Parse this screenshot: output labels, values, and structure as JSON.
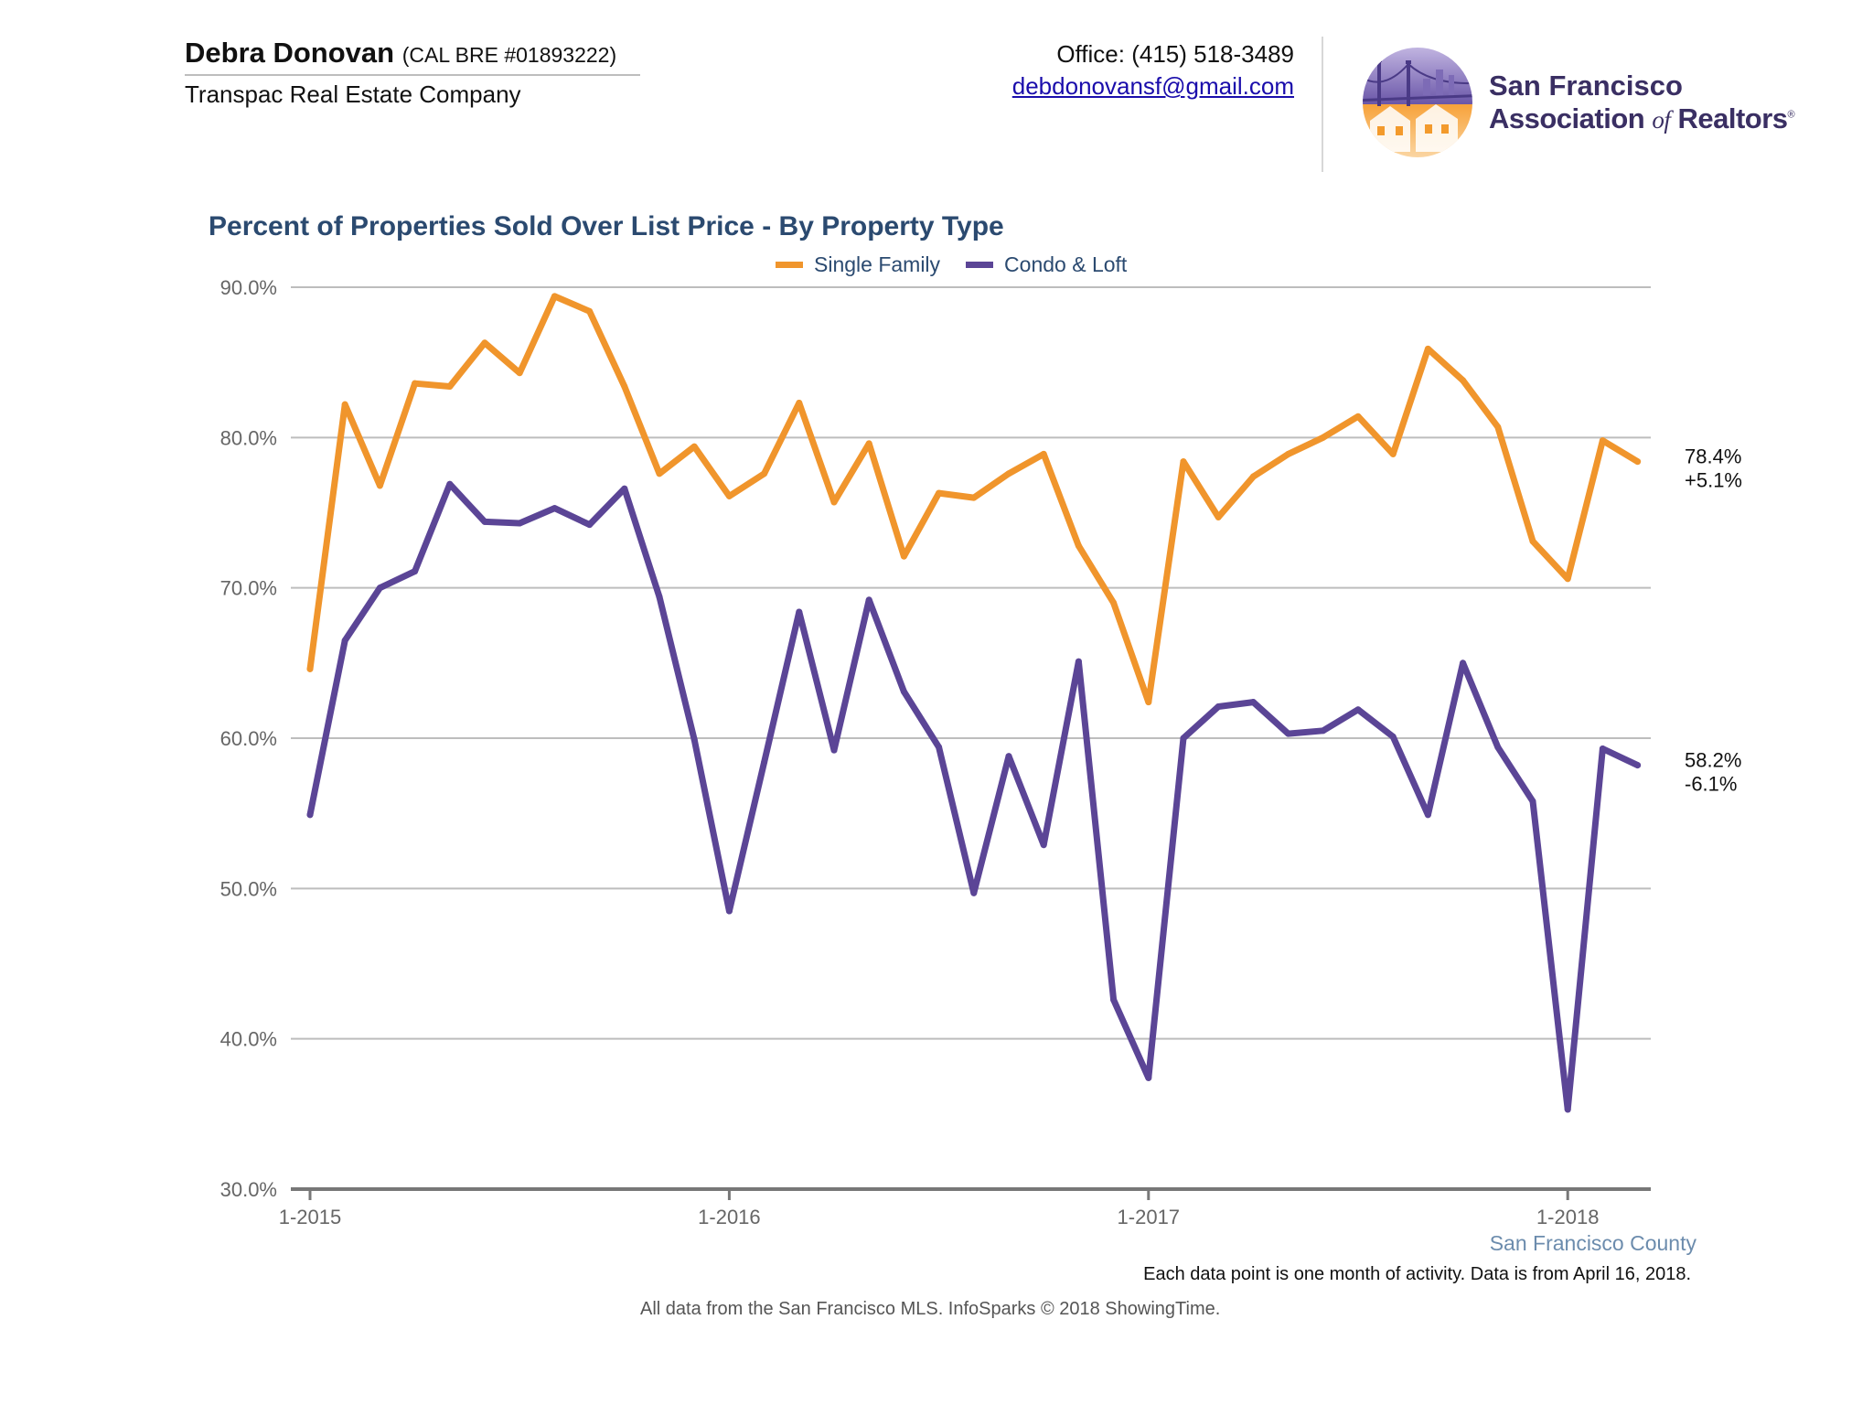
{
  "header": {
    "agent_name": "Debra Donovan",
    "agent_license": "(CAL BRE #01893222)",
    "company": "Transpac Real Estate Company",
    "office_phone": "Office: (415) 518-3489",
    "email": "debdonovansf@gmail.com"
  },
  "org": {
    "line1": "San Francisco",
    "line2_a": "Association",
    "line2_of": "of",
    "line2_b": "Realtors",
    "registered": "®",
    "colors": {
      "purple": "#5b4b9a",
      "orange": "#f39a2c",
      "text": "#3a2f63"
    }
  },
  "chart_data": {
    "type": "line",
    "title": "Percent of Properties Sold Over List Price - By Property Type",
    "ylim": [
      30,
      90
    ],
    "yticks": [
      90,
      80,
      70,
      60,
      50,
      40,
      30
    ],
    "ytick_labels": [
      "90.0%",
      "80.0%",
      "70.0%",
      "60.0%",
      "50.0%",
      "40.0%",
      "30.0%"
    ],
    "x_start": "2015-01",
    "x_tick_labels": [
      "1-2015",
      "1-2016",
      "1-2017",
      "1-2018"
    ],
    "grid": true,
    "legend_position": "top-center",
    "series": [
      {
        "name": "Single Family",
        "color": "#f0952c",
        "values": [
          64.6,
          82.2,
          76.8,
          83.6,
          83.4,
          86.3,
          84.3,
          89.4,
          88.4,
          83.4,
          77.6,
          79.4,
          76.1,
          77.6,
          82.3,
          75.7,
          79.6,
          72.1,
          76.3,
          76.0,
          77.6,
          78.9,
          72.8,
          69.0,
          62.4,
          78.4,
          74.7,
          77.4,
          78.9,
          80.0,
          81.4,
          78.9,
          85.9,
          83.8,
          80.7,
          73.1,
          70.6,
          79.8,
          78.4
        ],
        "end_label": "78.4%",
        "end_change": "+5.1%"
      },
      {
        "name": "Condo & Loft",
        "color": "#5b4596",
        "values": [
          54.9,
          66.5,
          70.0,
          71.1,
          76.9,
          74.4,
          74.3,
          75.3,
          74.2,
          76.6,
          69.4,
          59.9,
          48.5,
          58.4,
          68.4,
          59.2,
          69.2,
          63.1,
          59.4,
          49.7,
          58.8,
          52.9,
          65.1,
          42.6,
          37.4,
          60.0,
          62.1,
          62.4,
          60.3,
          60.5,
          61.9,
          60.1,
          54.9,
          65.0,
          59.4,
          55.8,
          35.3,
          59.3,
          58.2
        ],
        "end_label": "58.2%",
        "end_change": "-6.1%"
      }
    ],
    "region": "San Francisco County",
    "note": "Each data point is one month of activity. Data is from April 16, 2018.",
    "source": "All data from the San Francisco MLS. InfoSparks © 2018 ShowingTime."
  }
}
